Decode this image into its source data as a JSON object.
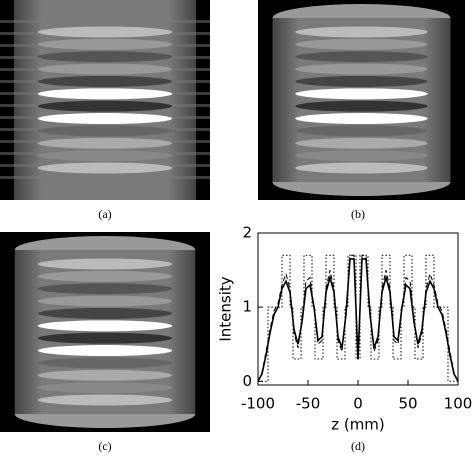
{
  "captions": [
    "(a)",
    "(b)",
    "(c)",
    "(d)"
  ],
  "chart_data": {
    "type": "line",
    "xlabel": "z (mm)",
    "ylabel": "Intensity",
    "xlim": [
      -100,
      100
    ],
    "xticks": [
      -100,
      -50,
      0,
      50,
      100
    ],
    "ylim": [
      -0.05,
      2
    ],
    "yticks": [
      0,
      1,
      2
    ],
    "series": [
      {
        "color": "#000000",
        "style": "solid",
        "x": [
          -100,
          -96,
          -92,
          -88,
          -84,
          -80,
          -76,
          -72,
          -68,
          -64,
          -60,
          -56,
          -52,
          -48,
          -44,
          -40,
          -36,
          -32,
          -28,
          -24,
          -20,
          -16,
          -12,
          -8,
          -4,
          0,
          4,
          8,
          12,
          16,
          20,
          24,
          28,
          32,
          36,
          40,
          44,
          48,
          52,
          56,
          60,
          64,
          68,
          72,
          76,
          80,
          84,
          88,
          92,
          96,
          100
        ],
        "values": [
          0.0,
          0.1,
          0.35,
          0.65,
          0.9,
          1.0,
          1.25,
          1.35,
          1.2,
          0.7,
          0.5,
          0.8,
          1.25,
          1.3,
          1.0,
          0.55,
          0.6,
          1.2,
          1.4,
          1.2,
          0.6,
          0.45,
          0.9,
          1.65,
          1.65,
          0.3,
          1.65,
          1.65,
          0.9,
          0.45,
          0.6,
          1.2,
          1.4,
          1.2,
          0.6,
          0.55,
          1.0,
          1.3,
          1.25,
          0.8,
          0.5,
          0.7,
          1.2,
          1.35,
          1.25,
          1.0,
          0.9,
          0.65,
          0.35,
          0.1,
          0.0
        ]
      },
      {
        "color": "#000000",
        "style": "dashed",
        "x": [
          -100,
          -96,
          -92,
          -88,
          -84,
          -80,
          -76,
          -72,
          -68,
          -64,
          -60,
          -56,
          -52,
          -48,
          -44,
          -40,
          -36,
          -32,
          -28,
          -24,
          -20,
          -16,
          -12,
          -8,
          -4,
          0,
          4,
          8,
          12,
          16,
          20,
          24,
          28,
          32,
          36,
          40,
          44,
          48,
          52,
          56,
          60,
          64,
          68,
          72,
          76,
          80,
          84,
          88,
          92,
          96,
          100
        ],
        "values": [
          0.0,
          0.12,
          0.4,
          0.7,
          0.95,
          1.05,
          1.3,
          1.45,
          1.25,
          0.65,
          0.45,
          0.85,
          1.35,
          1.4,
          1.0,
          0.5,
          0.55,
          1.25,
          1.5,
          1.25,
          0.55,
          0.4,
          0.95,
          1.7,
          1.7,
          0.3,
          1.7,
          1.7,
          0.95,
          0.4,
          0.55,
          1.25,
          1.5,
          1.25,
          0.55,
          0.5,
          1.0,
          1.4,
          1.35,
          0.85,
          0.45,
          0.65,
          1.25,
          1.45,
          1.3,
          1.05,
          0.95,
          0.7,
          0.4,
          0.12,
          0.0
        ]
      },
      {
        "color": "#000000",
        "style": "dotted",
        "x": [
          -100,
          -90,
          -90,
          -76,
          -76,
          -68,
          -68,
          -65,
          -65,
          -57,
          -57,
          -54,
          -54,
          -46,
          -46,
          -43,
          -43,
          -35,
          -35,
          -32,
          -32,
          -24,
          -24,
          -21,
          -21,
          -13,
          -13,
          -10,
          -10,
          -2,
          -2,
          2,
          2,
          10,
          10,
          13,
          13,
          21,
          21,
          24,
          24,
          32,
          32,
          35,
          35,
          43,
          43,
          46,
          46,
          54,
          54,
          57,
          57,
          65,
          65,
          68,
          68,
          76,
          76,
          90,
          90,
          100
        ],
        "values": [
          0,
          0,
          1,
          1,
          1.7,
          1.7,
          1,
          1,
          0.3,
          0.3,
          1,
          1,
          1.7,
          1.7,
          1,
          1,
          0.3,
          0.3,
          1,
          1,
          1.7,
          1.7,
          1,
          1,
          0.3,
          0.3,
          1,
          1,
          1.7,
          1.7,
          0.3,
          0.3,
          1.7,
          1.7,
          1,
          1,
          0.3,
          0.3,
          1,
          1,
          1.7,
          1.7,
          1,
          1,
          0.3,
          0.3,
          1,
          1,
          1.7,
          1.7,
          1,
          1,
          0.3,
          0.3,
          1,
          1,
          1.7,
          1.7,
          1,
          1,
          0,
          0
        ]
      }
    ]
  }
}
